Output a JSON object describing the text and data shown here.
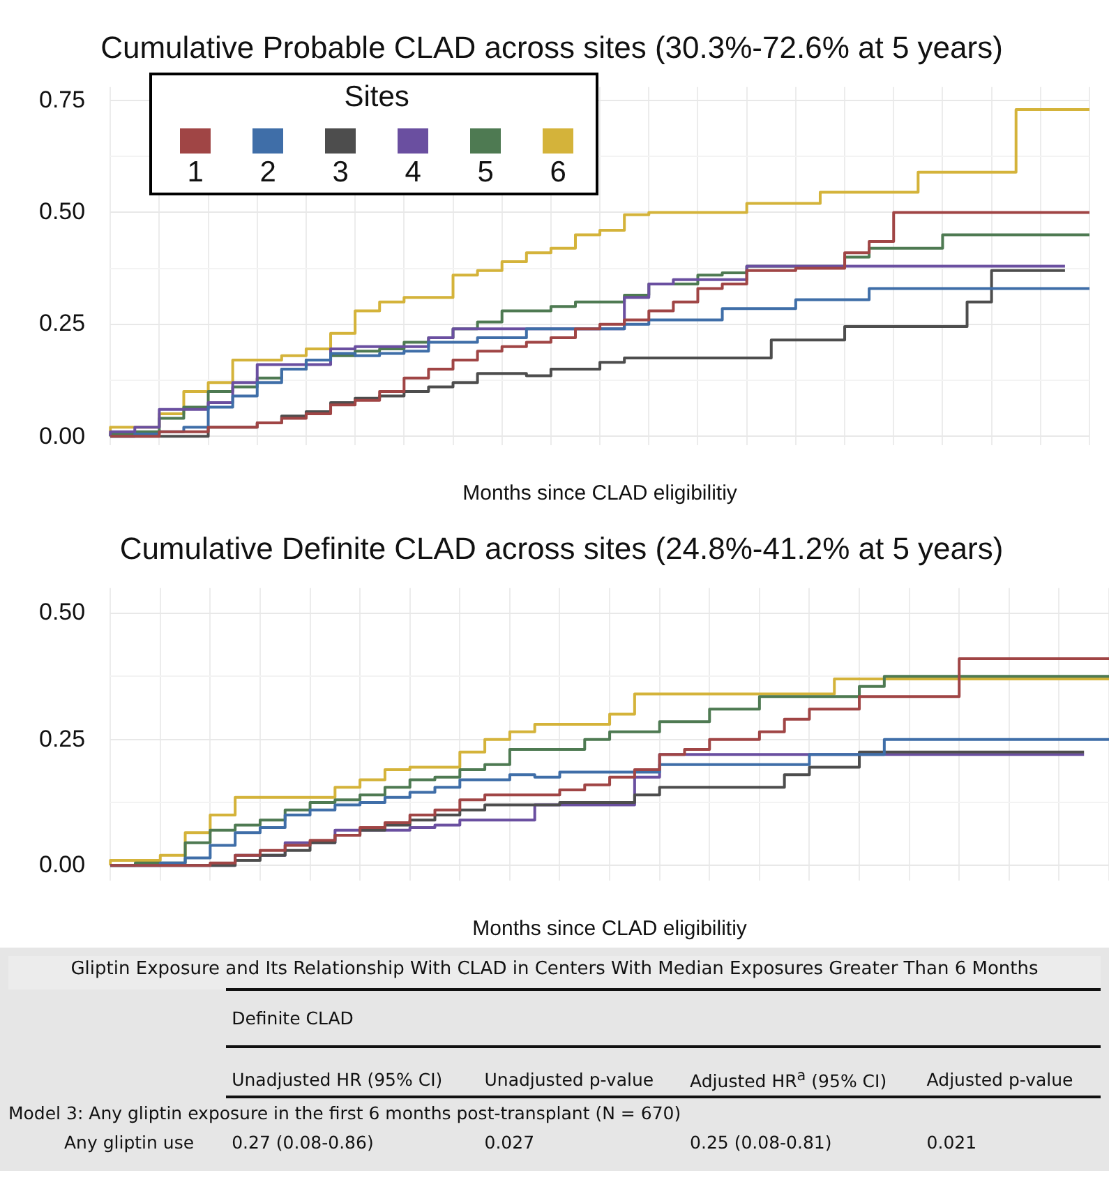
{
  "chart_data": [
    {
      "type": "step",
      "title": "Cumulative Probable CLAD across sites (30.3%-72.6% at 5 years)",
      "xlabel": "Months since CLAD eligibilitiy",
      "legend_title": "Sites",
      "legend": "top left",
      "grid": true,
      "tick_labels": "y",
      "categories": [
        null,
        null,
        null,
        null,
        null,
        null,
        null,
        null,
        null,
        null,
        null,
        null,
        null,
        null,
        null,
        null,
        null,
        null,
        null,
        null,
        null,
        null,
        null,
        null,
        null,
        null,
        null,
        null,
        null,
        null,
        null,
        null,
        null,
        null,
        null,
        null,
        null,
        null,
        null,
        null,
        null
      ],
      "ylim": [
        -0.02,
        0.78
      ],
      "yticks": [
        {
          "value": 0,
          "label": "0.00"
        },
        {
          "value": 0.125,
          "label": null
        },
        {
          "value": 0.25,
          "label": "0.25"
        },
        {
          "value": 0.375,
          "label": null
        },
        {
          "value": 0.5,
          "label": "0.50"
        },
        {
          "value": 0.625,
          "label": null
        },
        {
          "value": 0.75,
          "label": "0.75"
        }
      ],
      "series": [
        {
          "name": "1",
          "color": "#a04545",
          "values": [
            0,
            0,
            0,
            0.01,
            0.01,
            0.02,
            0.02,
            0.03,
            0.04,
            0.05,
            0.07,
            0.08,
            0.1,
            0.13,
            0.15,
            0.17,
            0.19,
            0.2,
            0.21,
            0.22,
            0.24,
            0.25,
            0.26,
            0.28,
            0.3,
            0.33,
            0.34,
            0.37,
            0.37,
            0.375,
            0.375,
            0.41,
            0.435,
            0.5,
            0.5,
            0.5,
            0.5,
            0.5,
            0.5,
            0.5,
            0.5
          ]
        },
        {
          "name": "2",
          "color": "#3f6ea8",
          "values": [
            0,
            0,
            0.005,
            0.01,
            0.02,
            0.065,
            0.09,
            0.12,
            0.15,
            0.17,
            0.185,
            0.18,
            0.185,
            0.19,
            0.21,
            0.21,
            0.22,
            0.22,
            0.24,
            0.24,
            0.24,
            0.24,
            0.25,
            0.26,
            0.26,
            0.26,
            0.285,
            0.285,
            0.285,
            0.305,
            0.305,
            0.305,
            0.33,
            0.33,
            0.33,
            0.33,
            0.33,
            0.33,
            0.33,
            0.33,
            0.33
          ]
        },
        {
          "name": "3",
          "color": "#4d4d4d",
          "values": [
            0,
            0,
            0,
            0,
            0,
            0.02,
            0.02,
            0.03,
            0.045,
            0.055,
            0.075,
            0.085,
            0.09,
            0.1,
            0.11,
            0.12,
            0.14,
            0.14,
            0.135,
            0.15,
            0.15,
            0.165,
            0.175,
            0.175,
            0.175,
            0.175,
            0.175,
            0.175,
            0.215,
            0.215,
            0.215,
            0.245,
            0.245,
            0.245,
            0.245,
            0.245,
            0.3,
            0.37,
            0.37,
            0.37,
            null
          ]
        },
        {
          "name": "4",
          "color": "#6a4fa0",
          "values": [
            0,
            0.01,
            0.02,
            0.06,
            0.06,
            0.075,
            0.12,
            0.16,
            0.16,
            0.16,
            0.195,
            0.2,
            0.2,
            0.2,
            0.22,
            0.24,
            0.24,
            0.24,
            0.24,
            0.24,
            0.24,
            0.24,
            0.31,
            0.34,
            0.35,
            0.35,
            0.35,
            0.38,
            0.38,
            0.38,
            0.38,
            0.38,
            0.38,
            0.38,
            0.38,
            0.38,
            0.38,
            0.38,
            0.38,
            0.38,
            null
          ]
        },
        {
          "name": "5",
          "color": "#4e7a52",
          "values": [
            0,
            0.005,
            0.01,
            0.04,
            0.065,
            0.1,
            0.11,
            0.13,
            0.15,
            0.17,
            0.18,
            0.19,
            0.195,
            0.21,
            0.22,
            0.24,
            0.255,
            0.28,
            0.28,
            0.29,
            0.3,
            0.3,
            0.315,
            0.34,
            0.34,
            0.36,
            0.365,
            0.38,
            0.38,
            0.38,
            0.38,
            0.4,
            0.42,
            0.42,
            0.42,
            0.45,
            0.45,
            0.45,
            0.45,
            0.45,
            0.45
          ]
        },
        {
          "name": "6",
          "color": "#d4b33a",
          "values": [
            0,
            0.02,
            0.02,
            0.05,
            0.1,
            0.12,
            0.17,
            0.17,
            0.18,
            0.195,
            0.23,
            0.28,
            0.3,
            0.31,
            0.31,
            0.36,
            0.37,
            0.39,
            0.41,
            0.42,
            0.45,
            0.46,
            0.495,
            0.5,
            0.5,
            0.5,
            0.5,
            0.52,
            0.52,
            0.52,
            0.545,
            0.545,
            0.545,
            0.545,
            0.59,
            0.59,
            0.59,
            0.59,
            0.73,
            0.73,
            0.73
          ]
        }
      ]
    },
    {
      "type": "step",
      "title": "Cumulative Definite CLAD across sites (24.8%-41.2% at 5 years)",
      "xlabel": "Months since CLAD eligibilitiy",
      "grid": true,
      "tick_labels": "y",
      "categories": [
        null,
        null,
        null,
        null,
        null,
        null,
        null,
        null,
        null,
        null,
        null,
        null,
        null,
        null,
        null,
        null,
        null,
        null,
        null,
        null,
        null,
        null,
        null,
        null,
        null,
        null,
        null,
        null,
        null,
        null,
        null,
        null,
        null,
        null,
        null,
        null,
        null,
        null,
        null,
        null,
        null
      ],
      "ylim": [
        -0.03,
        0.55
      ],
      "yticks": [
        {
          "value": 0,
          "label": "0.00"
        },
        {
          "value": 0.125,
          "label": null
        },
        {
          "value": 0.25,
          "label": "0.25"
        },
        {
          "value": 0.375,
          "label": null
        },
        {
          "value": 0.5,
          "label": "0.50"
        }
      ],
      "series": [
        {
          "color": "#a04545",
          "values": [
            0,
            0,
            0,
            0,
            0,
            0.005,
            0.02,
            0.03,
            0.04,
            0.05,
            0.06,
            0.075,
            0.085,
            0.1,
            0.11,
            0.13,
            0.14,
            0.14,
            0.14,
            0.15,
            0.16,
            0.175,
            0.19,
            0.22,
            0.23,
            0.25,
            0.25,
            0.265,
            0.29,
            0.31,
            0.31,
            0.335,
            0.335,
            0.335,
            0.335,
            0.41,
            0.41,
            0.41,
            0.41,
            0.41,
            0.41
          ]
        },
        {
          "color": "#3f6ea8",
          "values": [
            0,
            0,
            0,
            0.005,
            0.015,
            0.04,
            0.065,
            0.075,
            0.1,
            0.11,
            0.12,
            0.125,
            0.135,
            0.145,
            0.155,
            0.17,
            0.17,
            0.18,
            0.175,
            0.185,
            0.185,
            0.185,
            0.185,
            0.2,
            0.2,
            0.2,
            0.2,
            0.2,
            0.2,
            0.22,
            0.22,
            0.22,
            0.25,
            0.25,
            0.25,
            0.25,
            0.25,
            0.25,
            0.25,
            0.25,
            0.25
          ]
        },
        {
          "color": "#4d4d4d",
          "values": [
            0,
            0,
            0,
            0,
            0,
            0,
            0.01,
            0.02,
            0.03,
            0.045,
            0.06,
            0.07,
            0.08,
            0.09,
            0.1,
            0.11,
            0.12,
            0.12,
            0.12,
            0.125,
            0.125,
            0.125,
            0.14,
            0.155,
            0.155,
            0.155,
            0.155,
            0.155,
            0.18,
            0.195,
            0.195,
            0.225,
            0.225,
            0.225,
            0.225,
            0.225,
            0.225,
            0.225,
            0.225,
            0.225,
            null
          ]
        },
        {
          "color": "#6a4fa0",
          "values": [
            0,
            0,
            0,
            0,
            0,
            0,
            0.02,
            0.02,
            0.045,
            0.045,
            0.07,
            0.07,
            0.07,
            0.075,
            0.08,
            0.09,
            0.09,
            0.09,
            0.12,
            0.12,
            0.12,
            0.12,
            0.175,
            0.22,
            0.22,
            0.22,
            0.22,
            0.22,
            0.22,
            0.22,
            0.22,
            0.22,
            0.22,
            0.22,
            0.22,
            0.22,
            0.22,
            0.22,
            0.22,
            0.22,
            null
          ]
        },
        {
          "color": "#4e7a52",
          "values": [
            0,
            0,
            0.005,
            0.005,
            0.045,
            0.07,
            0.08,
            0.09,
            0.11,
            0.125,
            0.13,
            0.14,
            0.155,
            0.17,
            0.175,
            0.19,
            0.2,
            0.23,
            0.23,
            0.23,
            0.25,
            0.265,
            0.265,
            0.285,
            0.285,
            0.31,
            0.31,
            0.335,
            0.335,
            0.335,
            0.335,
            0.355,
            0.375,
            0.375,
            0.375,
            0.375,
            0.375,
            0.375,
            0.375,
            0.375,
            0.375
          ]
        },
        {
          "color": "#d4b33a",
          "values": [
            0,
            0.01,
            0.01,
            0.02,
            0.065,
            0.1,
            0.135,
            0.135,
            0.135,
            0.135,
            0.155,
            0.17,
            0.19,
            0.195,
            0.195,
            0.225,
            0.25,
            0.265,
            0.28,
            0.28,
            0.28,
            0.3,
            0.34,
            0.34,
            0.34,
            0.34,
            0.34,
            0.34,
            0.34,
            0.34,
            0.37,
            0.37,
            0.37,
            0.37,
            0.37,
            0.37,
            0.37,
            0.37,
            0.37,
            0.37,
            0.37
          ]
        }
      ]
    },
    {
      "type": "other",
      "title": "Gliptin Exposure and Its Relationship With CLAD in Centers With Median Exposures Greater Than 6 Months",
      "subtitle": "Definite CLAD",
      "categories": [
        null,
        "Unadjusted HR (95% CI)",
        "Unadjusted p-value",
        "Adjusted HR$^{a}$ (95% CI)",
        "Adjusted p-value"
      ],
      "y_categories": [
        "Model 3: Any gliptin exposure in the first 6 months post-transplant (N = 670)",
        "Any gliptin use"
      ],
      "cell_labels": [
        [
          null,
          null,
          null,
          null
        ],
        [
          "0.27 (0.08-0.86)",
          "0.027",
          "0.25 (0.08-0.81)",
          "0.021"
        ]
      ]
    }
  ]
}
